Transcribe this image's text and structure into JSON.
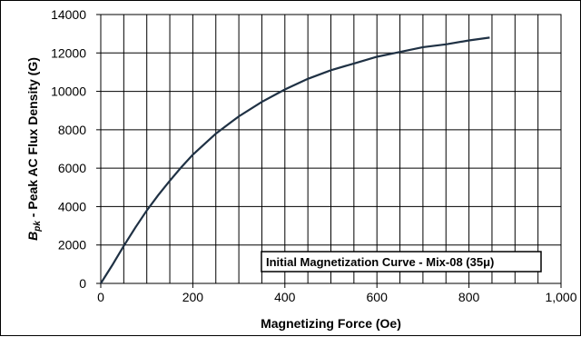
{
  "chart_data": {
    "type": "line",
    "title": "",
    "xlabel": "Magnetizing Force (Oe)",
    "ylabel_main": "B",
    "ylabel_sub": "pk",
    "ylabel_rest": " - Peak AC Flux Density (G)",
    "xlim": [
      0,
      1000
    ],
    "ylim": [
      0,
      14000
    ],
    "x_ticks": [
      0,
      200,
      400,
      600,
      800,
      1000
    ],
    "x_tick_labels": [
      "0",
      "200",
      "400",
      "600",
      "800",
      "1,000"
    ],
    "y_ticks": [
      0,
      2000,
      4000,
      6000,
      8000,
      10000,
      12000,
      14000
    ],
    "y_tick_labels": [
      "0",
      "2000",
      "4000",
      "6000",
      "8000",
      "10000",
      "12000",
      "14000"
    ],
    "x_minor_step": 50,
    "grid": true,
    "legend_label": "Initial Magnetization Curve - Mix-08  (35μ)",
    "legend_position": "bottom-right",
    "line_color": "#1f3144",
    "series": [
      {
        "x": [
          0,
          25,
          50,
          75,
          100,
          125,
          150,
          175,
          200,
          250,
          300,
          350,
          400,
          450,
          500,
          550,
          600,
          650,
          700,
          750,
          800,
          845
        ],
        "y": [
          0,
          950,
          1950,
          2900,
          3800,
          4600,
          5350,
          6050,
          6700,
          7800,
          8700,
          9450,
          10100,
          10650,
          11100,
          11450,
          11800,
          12050,
          12300,
          12450,
          12650,
          12800
        ]
      }
    ]
  }
}
